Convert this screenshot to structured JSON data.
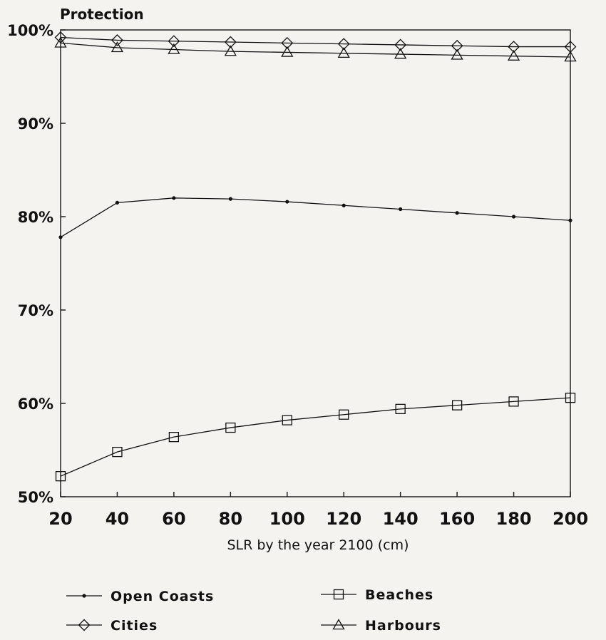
{
  "chart_data": {
    "type": "line",
    "title": "Protection",
    "xlabel": "SLR by the year 2100 (cm)",
    "ylabel": "",
    "x": [
      20,
      40,
      60,
      80,
      100,
      120,
      140,
      160,
      180,
      200
    ],
    "xlim": [
      20,
      200
    ],
    "ylim": [
      50,
      100
    ],
    "y_ticks": [
      "50%",
      "60%",
      "70%",
      "80%",
      "90%",
      "100%"
    ],
    "x_ticks": [
      "20",
      "40",
      "60",
      "80",
      "100",
      "120",
      "140",
      "160",
      "180",
      "200"
    ],
    "grid": false,
    "legend_placement": "bottom",
    "series": [
      {
        "name": "Open Coasts",
        "marker": "dot",
        "color": "#111111",
        "values": [
          77.8,
          81.5,
          82.0,
          81.9,
          81.6,
          81.2,
          80.8,
          80.4,
          80.0,
          79.6
        ]
      },
      {
        "name": "Cities",
        "marker": "diamond",
        "color": "#111111",
        "values": [
          99.2,
          98.9,
          98.8,
          98.7,
          98.6,
          98.5,
          98.4,
          98.3,
          98.2,
          98.2
        ]
      },
      {
        "name": "Beaches",
        "marker": "square",
        "color": "#111111",
        "values": [
          52.2,
          54.8,
          56.4,
          57.4,
          58.2,
          58.8,
          59.4,
          59.8,
          60.2,
          60.6
        ]
      },
      {
        "name": "Harbours",
        "marker": "triangle",
        "color": "#111111",
        "values": [
          98.6,
          98.1,
          97.9,
          97.7,
          97.6,
          97.5,
          97.4,
          97.3,
          97.2,
          97.1
        ]
      }
    ]
  }
}
